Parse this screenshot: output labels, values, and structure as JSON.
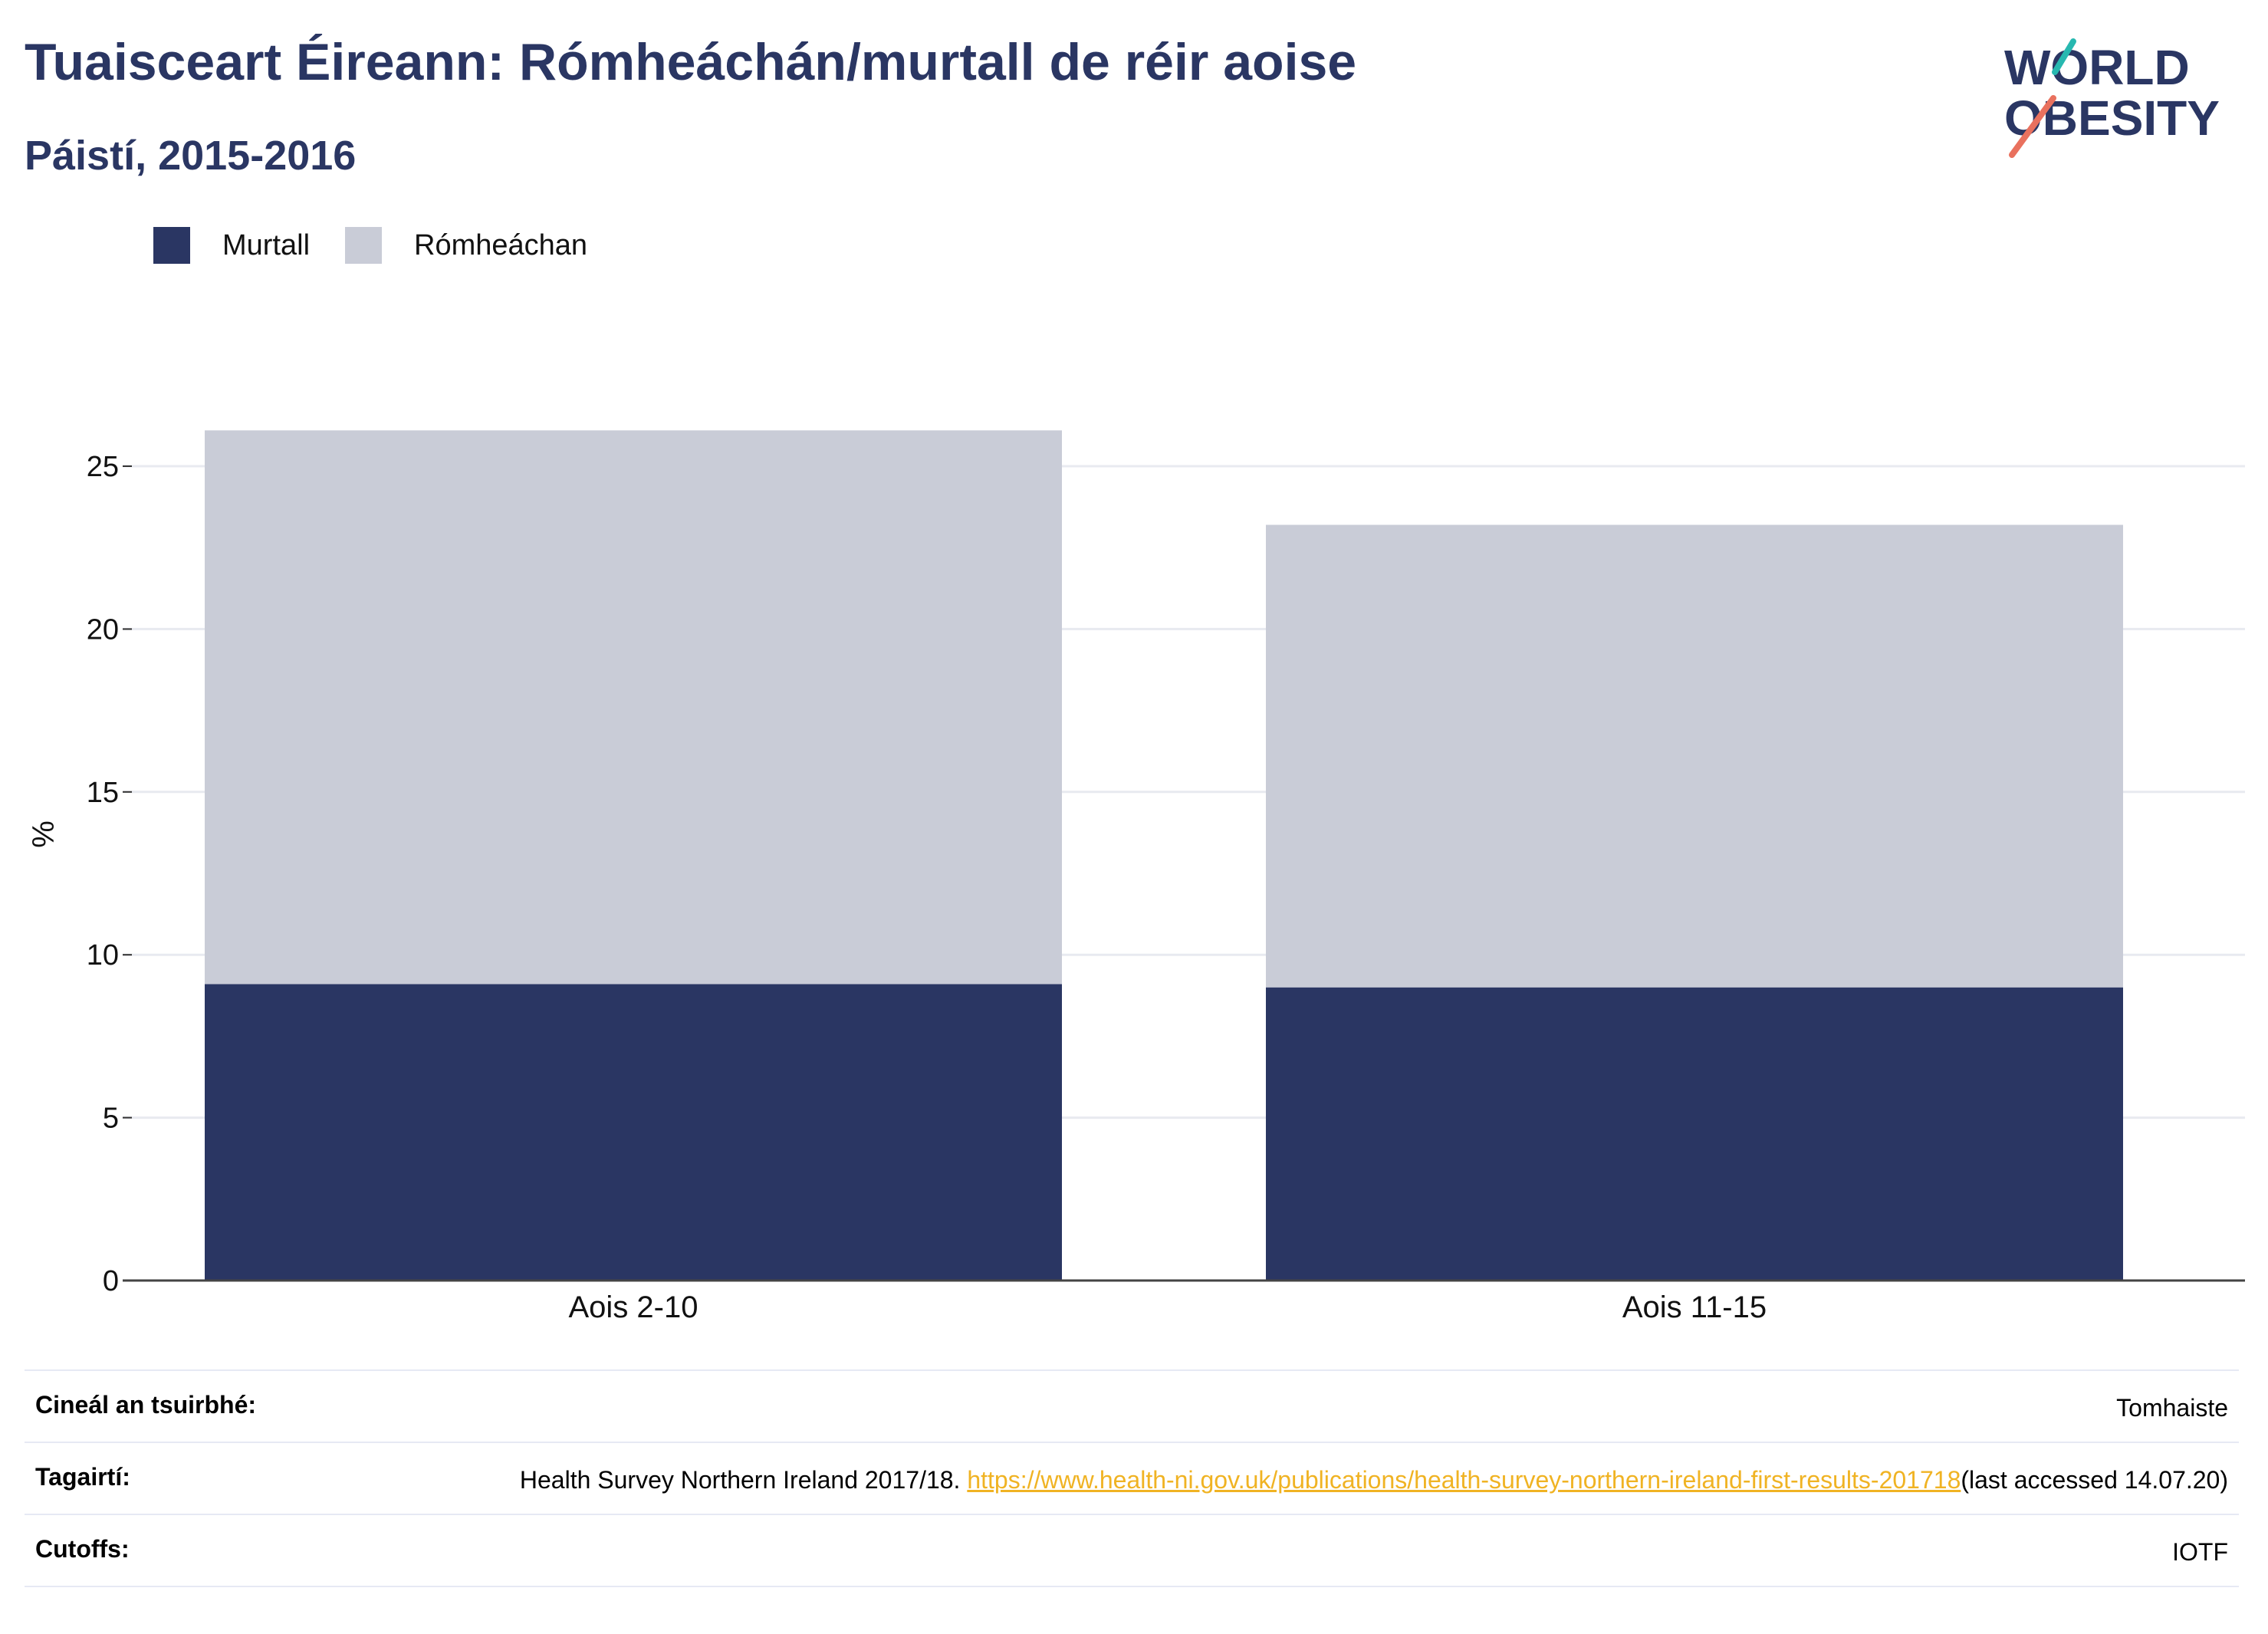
{
  "title": "Tuaisceart Éireann: Rómheáchán/murtall de réir aoise",
  "subtitle": "Páistí, 2015-2016",
  "logo": {
    "line1": "WORLD",
    "line2": "OBESITY"
  },
  "colors": {
    "murtall": "#2a3663",
    "romheachan": "#c9ccd7",
    "title": "#2a3663",
    "link": "#f0b323",
    "grid": "#e8eaf0"
  },
  "chart_data": {
    "type": "bar",
    "stacked": true,
    "categories": [
      "Aois 2-10",
      "Aois 11-15"
    ],
    "series": [
      {
        "name": "Murtall",
        "values": [
          9.1,
          9.0
        ]
      },
      {
        "name": "Rómheáchan",
        "values": [
          17.0,
          14.2
        ]
      }
    ],
    "ylabel": "%",
    "xlabel": "",
    "ylim": [
      0,
      27
    ],
    "yticks": [
      0,
      5,
      10,
      15,
      20,
      25
    ],
    "grid": true,
    "legend_position": "top-left"
  },
  "footer": {
    "survey_label": "Cineál an tsuirbhé:",
    "survey_value": "Tomhaiste",
    "refs_label": "Tagairtí:",
    "refs_text": "Health Survey Northern Ireland 2017/18. ",
    "refs_link": "https://www.health-ni.gov.uk/publications/health-survey-northern-ireland-first-results-201718",
    "refs_suffix": "(last accessed 14.07.20)",
    "cutoffs_label": "Cutoffs:",
    "cutoffs_value": "IOTF"
  }
}
